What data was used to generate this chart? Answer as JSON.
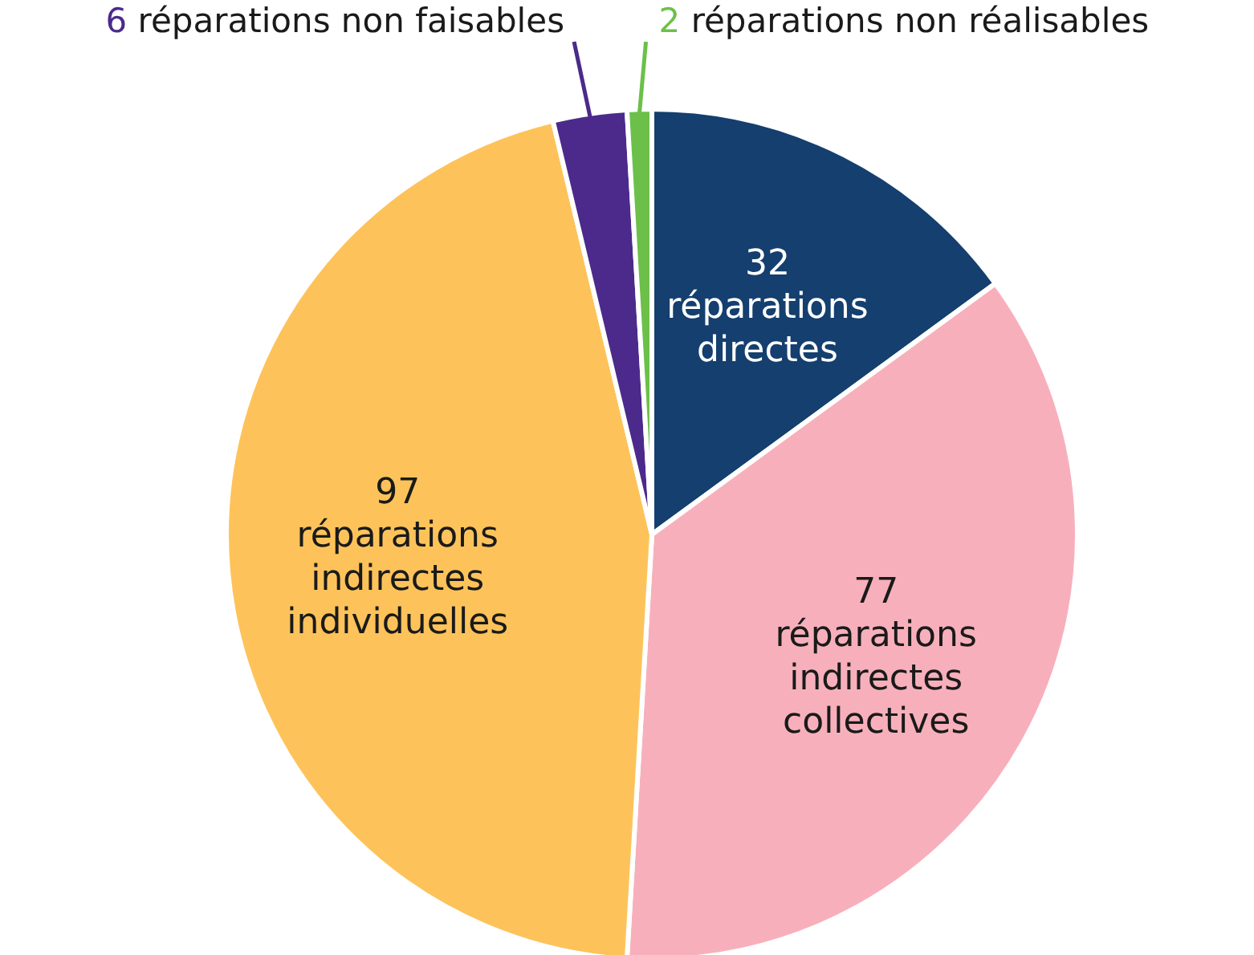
{
  "chart_data": {
    "type": "pie",
    "categories": [
      "réparations directes",
      "réparations indirectes collectives",
      "réparations indirectes individuelles",
      "réparations non faisables",
      "réparations non réalisables"
    ],
    "values": [
      32,
      77,
      97,
      6,
      2
    ],
    "colors": [
      "#143f6e",
      "#f7b0bb",
      "#fdc35a",
      "#4b2a8c",
      "#6cc04a"
    ],
    "data_labels": true
  }
}
